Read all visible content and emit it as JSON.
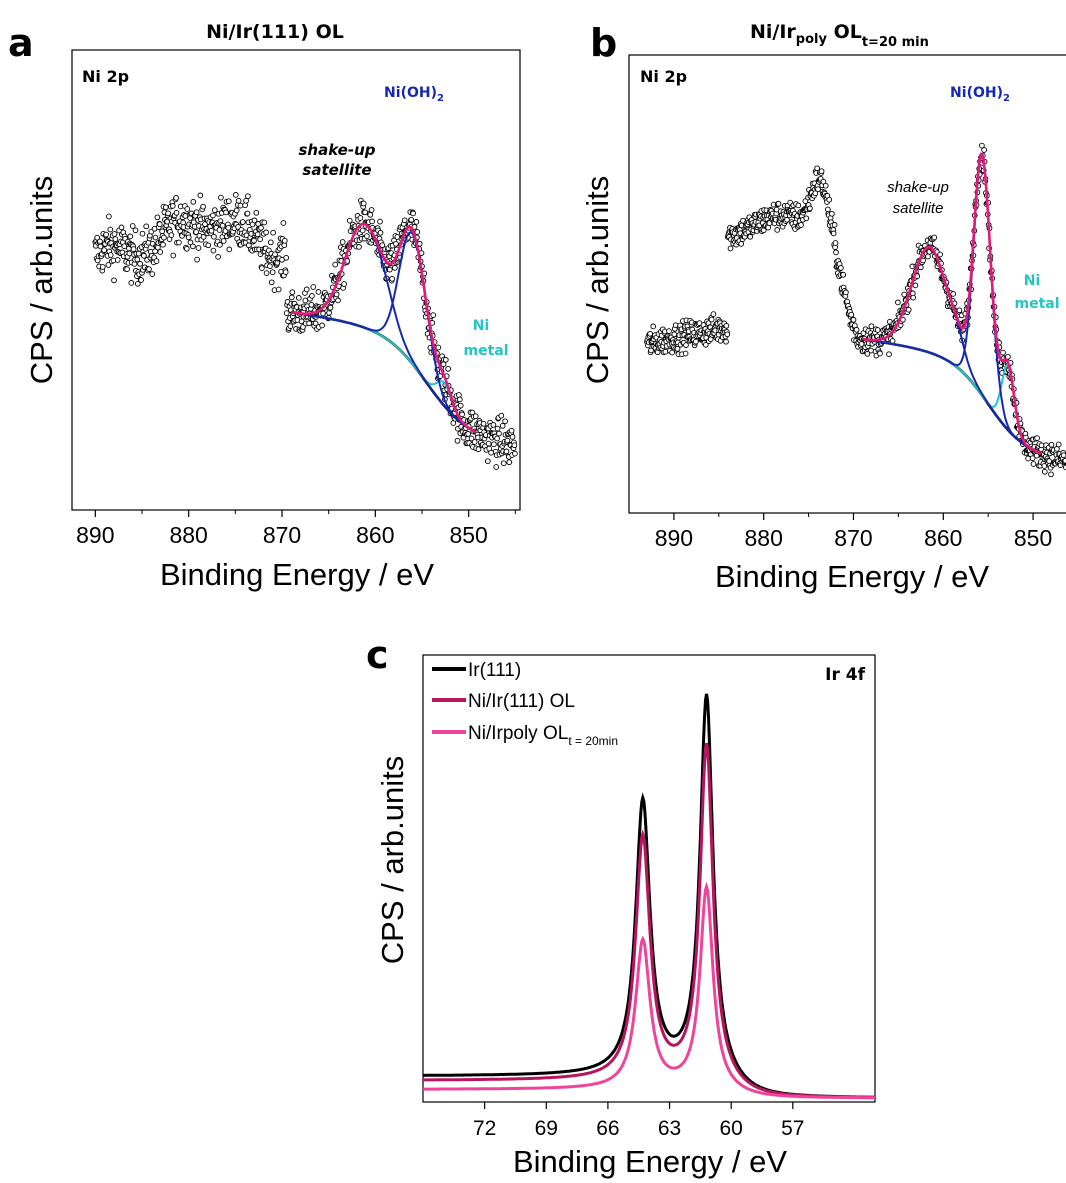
{
  "panels": [
    {
      "letter": "a",
      "title": "Ni/Ir(111) OL",
      "region": "Ni 2p",
      "peak_label": "Ni(OH)",
      "peak_label_sub": "2",
      "satellite_label_1": "shake-up",
      "satellite_label_2": "satellite",
      "metal_label_1": "Ni",
      "metal_label_2": "metal",
      "xlabel": "Binding Energy / eV",
      "ylabel": "CPS / arb.units"
    },
    {
      "letter": "b",
      "title_main": "Ni/Ir",
      "title_sub": "poly",
      "title_rest": " OL",
      "title_sub2": "t=20 min",
      "region": "Ni 2p",
      "peak_label": "Ni(OH)",
      "peak_label_sub": "2",
      "satellite_label_1": "shake-up",
      "satellite_label_2": "satellite",
      "metal_label_1": "Ni",
      "metal_label_2": "metal",
      "xlabel": "Binding Energy / eV",
      "ylabel": "CPS / arb.units"
    },
    {
      "letter": "c",
      "region": "Ir 4f",
      "legend": [
        "Ir(111)",
        "Ni/Ir(111) OL",
        "Ni/Irpoly OL"
      ],
      "legend_sub": "t = 20min",
      "xlabel": "Binding Energy / eV",
      "ylabel": "CPS / arb.units"
    }
  ],
  "colors": {
    "axis": "#000000",
    "data_points": "#000000",
    "envelope": "#e5197a",
    "ni_oh2": "#1428b4",
    "ni_metal": "#21c5c5",
    "background": "#000000",
    "ir111": "#000000",
    "ni_ir111": "#b5165e",
    "ni_irpoly": "#f0449b"
  },
  "chart_data": [
    {
      "type": "scatter",
      "panel": "a",
      "xlim": [
        892.5,
        844.5
      ],
      "xticks": [
        890,
        880,
        870,
        860,
        850
      ],
      "xticks_minor": [
        885,
        875,
        865,
        855,
        845
      ],
      "y_ticks_shown": false,
      "data_range_x": [
        890,
        845
      ],
      "fit_range_x": [
        869,
        849
      ],
      "peaks": [
        {
          "name": "Ni(OH)2 main",
          "center": 856.2
        },
        {
          "name": "shake-up satellite",
          "center": 861.3
        },
        {
          "name": "Ni metal",
          "center": 852.6
        }
      ]
    },
    {
      "type": "scatter",
      "panel": "b",
      "xlim": [
        895,
        846
      ],
      "xticks": [
        890,
        880,
        870,
        860,
        850
      ],
      "xticks_minor": [
        885,
        875,
        865,
        855
      ],
      "y_ticks_shown": false,
      "data_range_x": [
        893,
        846
      ],
      "fit_range_x": [
        869,
        849
      ],
      "peaks": [
        {
          "name": "Ni(OH)2 main",
          "center": 855.7
        },
        {
          "name": "shake-up satellite",
          "center": 861.5
        },
        {
          "name": "Ni metal",
          "center": 852.8
        }
      ]
    },
    {
      "type": "line",
      "panel": "c",
      "xlim": [
        75,
        53
      ],
      "xticks": [
        72,
        69,
        66,
        63,
        60,
        57
      ],
      "y_ticks_shown": false,
      "series": [
        {
          "name": "Ir(111)",
          "color": "#000000",
          "baseline": 0.05,
          "peak_high": 0.85,
          "peak_low": 0.61,
          "valley": 0.15
        },
        {
          "name": "Ni/Ir(111) OL",
          "color": "#b5165e",
          "baseline": 0.04,
          "peak_high": 0.75,
          "peak_low": 0.54,
          "valley": 0.13
        },
        {
          "name": "Ni/Irpoly OL",
          "color": "#f0449b",
          "baseline": 0.02,
          "peak_high": 0.45,
          "peak_low": 0.33,
          "valley": 0.06
        }
      ],
      "peaks_x": [
        64.3,
        61.2
      ]
    }
  ]
}
